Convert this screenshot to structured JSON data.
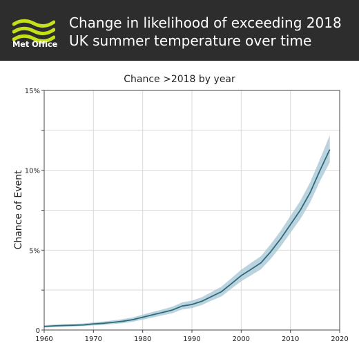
{
  "header": {
    "brand": "Met Office",
    "title_line1": "Change in likelihood of exceeding 2018",
    "title_line2": "UK summer temperature over time",
    "brand_color": "#c5e01a",
    "background_color": "#2d2d2d",
    "logo_icon": "met-office-wave-logo"
  },
  "chart_data": {
    "type": "line",
    "title": "Chance >2018 by year",
    "xlabel": "",
    "ylabel": "Chance of Event",
    "xlim": [
      1960,
      2020
    ],
    "ylim": [
      0,
      15
    ],
    "x_ticks": [
      1960,
      1970,
      1980,
      1990,
      2000,
      2010,
      2020
    ],
    "y_ticks": [
      0,
      5,
      10,
      15
    ],
    "y_tick_labels": [
      "0",
      "5%",
      "10%",
      "15%"
    ],
    "grid": true,
    "line_color": "#2e6b7a",
    "band_color": "#a9c8d6",
    "series": [
      {
        "x": [
          1960,
          1962,
          1964,
          1966,
          1968,
          1970,
          1972,
          1974,
          1976,
          1978,
          1980,
          1982,
          1984,
          1986,
          1988,
          1990,
          1992,
          1994,
          1996,
          1998,
          2000,
          2002,
          2004,
          2006,
          2008,
          2010,
          2012,
          2014,
          2016,
          2018
        ],
        "values": [
          0.22,
          0.26,
          0.28,
          0.3,
          0.32,
          0.38,
          0.42,
          0.48,
          0.55,
          0.65,
          0.8,
          0.95,
          1.1,
          1.25,
          1.5,
          1.6,
          1.8,
          2.1,
          2.4,
          2.9,
          3.4,
          3.8,
          4.2,
          4.9,
          5.7,
          6.6,
          7.5,
          8.6,
          10.0,
          11.3
        ],
        "lower": [
          0.15,
          0.18,
          0.2,
          0.22,
          0.24,
          0.29,
          0.32,
          0.37,
          0.43,
          0.52,
          0.65,
          0.78,
          0.92,
          1.05,
          1.28,
          1.38,
          1.56,
          1.84,
          2.1,
          2.58,
          3.05,
          3.42,
          3.8,
          4.45,
          5.22,
          6.08,
          6.94,
          7.98,
          9.32,
          10.5
        ],
        "upper": [
          0.3,
          0.34,
          0.37,
          0.39,
          0.41,
          0.48,
          0.53,
          0.6,
          0.68,
          0.79,
          0.96,
          1.13,
          1.29,
          1.46,
          1.73,
          1.84,
          2.05,
          2.38,
          2.72,
          3.24,
          3.77,
          4.2,
          4.62,
          5.37,
          6.2,
          7.14,
          8.08,
          9.24,
          10.7,
          12.2
        ]
      }
    ]
  }
}
